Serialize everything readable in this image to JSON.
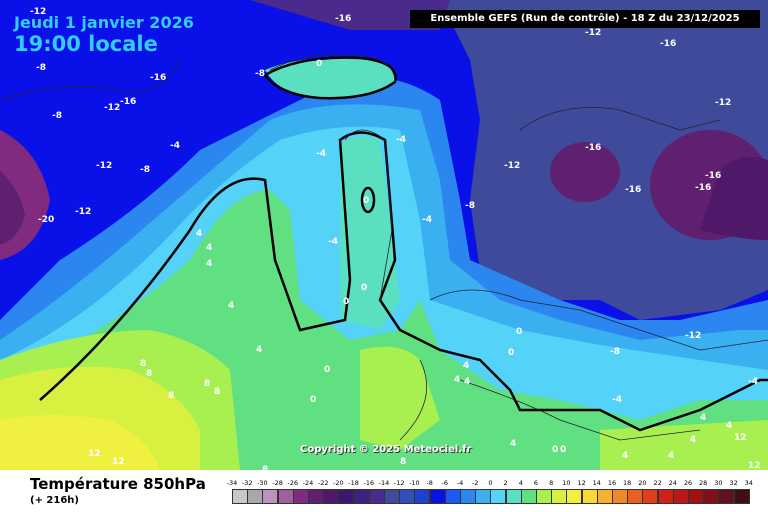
{
  "header": {
    "date": "Jeudi 1 janvier 2026",
    "time": "19:00 locale",
    "run_info": "Ensemble GEFS  (Run de contrôle)  -  18 Z du 23/12/2025"
  },
  "copyright": "Copyright © 2025 Meteociel.fr",
  "footer": {
    "title": "Température 850hPa",
    "subtitle": "(+ 216h)"
  },
  "scale": {
    "ticks": [
      "-34",
      "-32",
      "-30",
      "-28",
      "-26",
      "-24",
      "-22",
      "-20",
      "-18",
      "-16",
      "-14",
      "-12",
      "-10",
      "-8",
      "-6",
      "-4",
      "-2",
      "0",
      "2",
      "4",
      "6",
      "8",
      "10",
      "12",
      "14",
      "16",
      "18",
      "20",
      "22",
      "24",
      "26",
      "28",
      "30",
      "32",
      "34"
    ],
    "colors": [
      "#c8c8c8",
      "#a8a8a8",
      "#c090c0",
      "#a060a0",
      "#802a80",
      "#602070",
      "#501868",
      "#3a1870",
      "#402080",
      "#4a2a8a",
      "#404a9a",
      "#3050b8",
      "#2040d0",
      "#0a10e8",
      "#1a5aee",
      "#2b86f0",
      "#3ab0f0",
      "#55d2f8",
      "#5ae0c0",
      "#60e080",
      "#a8f050",
      "#d8f040",
      "#f0f040",
      "#f8d838",
      "#f8b030",
      "#f08828",
      "#e86020",
      "#e04018",
      "#d02018",
      "#b81818",
      "#a01010",
      "#801018",
      "#601020",
      "#401010"
    ]
  },
  "map_labels": [
    {
      "text": "-16",
      "color": "white"
    },
    {
      "text": "-12",
      "color": "white"
    },
    {
      "text": "-8",
      "color": "white"
    },
    {
      "text": "-4",
      "color": "white"
    },
    {
      "text": "-20",
      "color": "white"
    },
    {
      "text": "0",
      "color": "white"
    },
    {
      "text": "4",
      "color": "white"
    },
    {
      "text": "8",
      "color": "white"
    },
    {
      "text": "12",
      "color": "white"
    }
  ]
}
